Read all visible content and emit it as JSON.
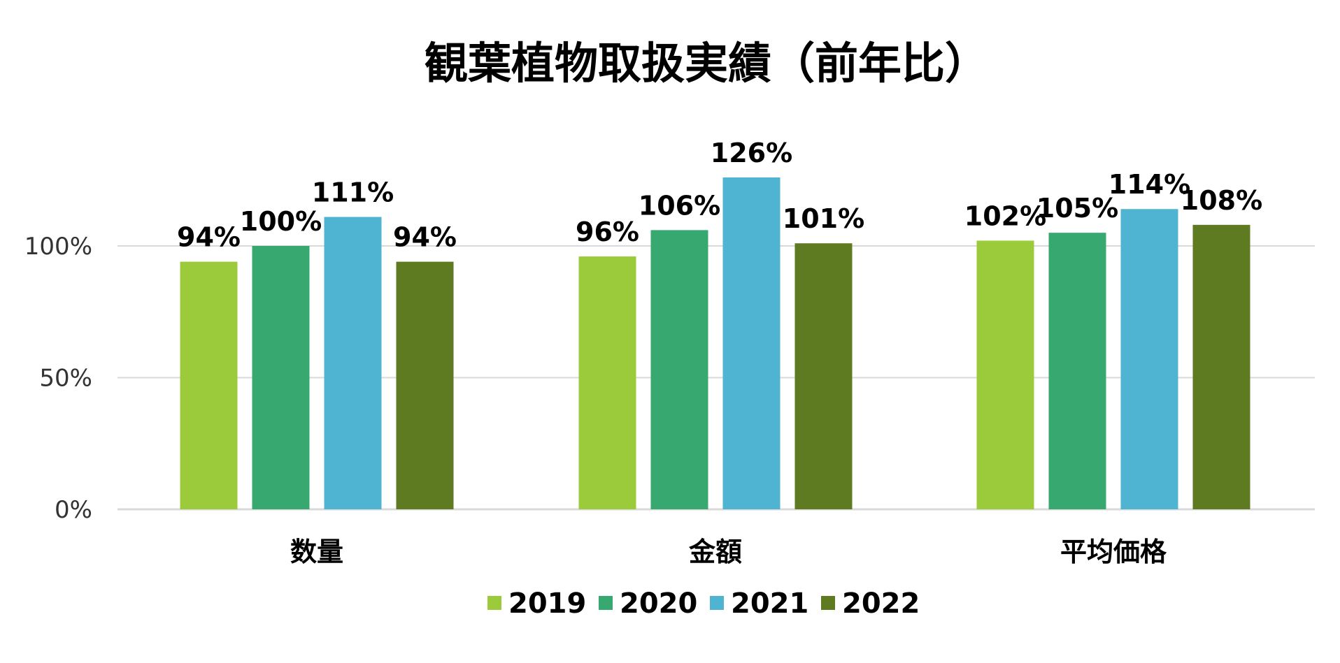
{
  "chart_data": {
    "type": "bar",
    "title": "観葉植物取扱実績（前年比）",
    "categories": [
      "数量",
      "金額",
      "平均価格"
    ],
    "series": [
      {
        "name": "2019",
        "color": "#9BCB3B",
        "values": [
          94,
          96,
          102
        ],
        "labels": [
          "94%",
          "96%",
          "102%"
        ]
      },
      {
        "name": "2020",
        "color": "#37A970",
        "values": [
          100,
          106,
          105
        ],
        "labels": [
          "100%",
          "106%",
          "105%"
        ]
      },
      {
        "name": "2021",
        "color": "#4FB3D2",
        "values": [
          111,
          126,
          114
        ],
        "labels": [
          "111%",
          "126%",
          "114%"
        ]
      },
      {
        "name": "2022",
        "color": "#5E7B22",
        "values": [
          94,
          101,
          108
        ],
        "labels": [
          "94%",
          "101%",
          "108%"
        ]
      }
    ],
    "y_ticks": [
      {
        "value": 0,
        "label": "0%"
      },
      {
        "value": 50,
        "label": "50%"
      },
      {
        "value": 100,
        "label": "100%"
      }
    ],
    "ylim": [
      0,
      130
    ],
    "xlabel": "",
    "ylabel": "",
    "grid": true,
    "legend_position": "bottom"
  }
}
